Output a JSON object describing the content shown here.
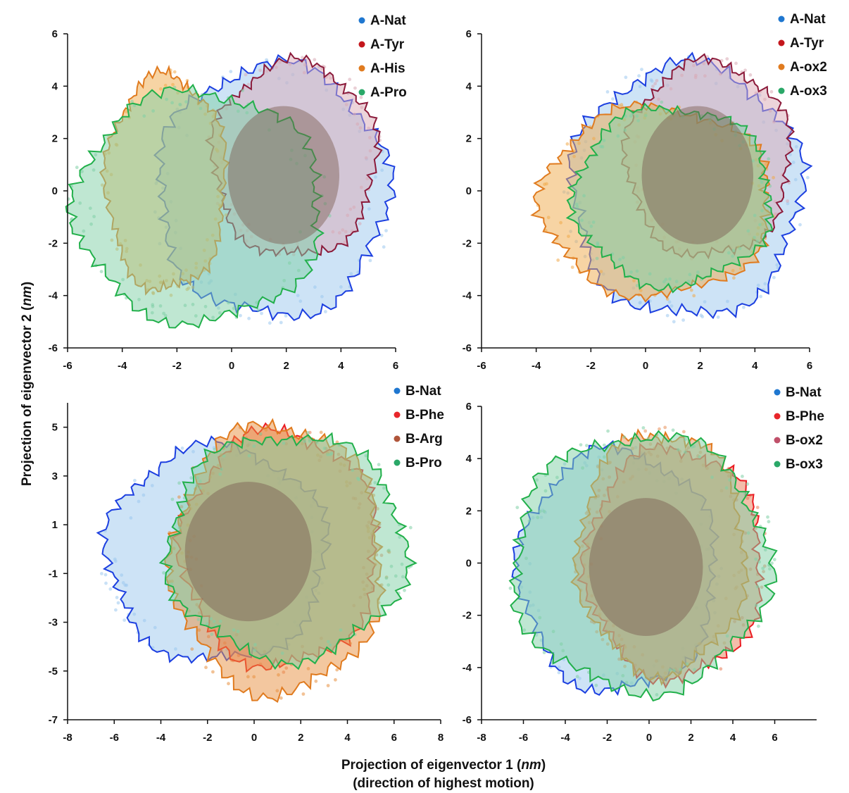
{
  "figure": {
    "xlabel_prefix": "Projection of eigenvector 1 (",
    "xlabel_unit": "nm",
    "xlabel_suffix": ")",
    "xlabel_line2": "(direction of highest motion)",
    "ylabel_prefix": "Projection of eigenvector 2 (",
    "ylabel_unit": "nm",
    "ylabel_suffix": ")"
  },
  "chart_data": [
    {
      "type": "scatter",
      "panel": "top-left",
      "xlim": [
        -6,
        6
      ],
      "ylim": [
        -6,
        6
      ],
      "xticks": [
        -6,
        -4,
        -2,
        0,
        2,
        4,
        6
      ],
      "yticks": [
        -6,
        -4,
        -2,
        0,
        2,
        4,
        6
      ],
      "legend": "top-right",
      "series": [
        {
          "name": "A-Nat",
          "color": "#1f77d0",
          "fill": "#9cc8ee",
          "outline": "#1c3fe0",
          "center": [
            1.5,
            0.0
          ],
          "radius": [
            4.2,
            4.8
          ]
        },
        {
          "name": "A-Tyr",
          "color": "#c4161c",
          "fill": "#d9a9b5",
          "outline": "#8b1a3a",
          "center": [
            2.3,
            1.2
          ],
          "radius": [
            3.0,
            3.7
          ]
        },
        {
          "name": "A-His",
          "color": "#e07b1f",
          "fill": "#f0a94a",
          "outline": "#e07b1f",
          "center": [
            -2.4,
            0.3
          ],
          "radius": [
            2.2,
            4.1
          ]
        },
        {
          "name": "A-Pro",
          "color": "#2aa868",
          "fill": "#7fd0a6",
          "outline": "#22b04b",
          "center": [
            -1.2,
            -0.6
          ],
          "radius": [
            4.5,
            4.4
          ]
        }
      ]
    },
    {
      "type": "scatter",
      "panel": "top-right",
      "xlim": [
        -6,
        6
      ],
      "ylim": [
        -6,
        6
      ],
      "xticks": [
        -6,
        -4,
        -2,
        0,
        2,
        4,
        6
      ],
      "yticks": [
        -6,
        -4,
        -2,
        0,
        2,
        4,
        6
      ],
      "legend": "top-right",
      "series": [
        {
          "name": "A-Nat",
          "color": "#1f77d0",
          "fill": "#9cc8ee",
          "outline": "#1c3fe0",
          "center": [
            1.5,
            0.0
          ],
          "radius": [
            4.2,
            4.8
          ]
        },
        {
          "name": "A-Tyr",
          "color": "#c4161c",
          "fill": "#d9a9b5",
          "outline": "#8b1a3a",
          "center": [
            2.3,
            1.2
          ],
          "radius": [
            3.0,
            3.7
          ]
        },
        {
          "name": "A-ox2",
          "color": "#e07b1f",
          "fill": "#f0a94a",
          "outline": "#e07b1f",
          "center": [
            0.4,
            -0.4
          ],
          "radius": [
            4.2,
            3.6
          ]
        },
        {
          "name": "A-ox3",
          "color": "#2aa868",
          "fill": "#7fd0a6",
          "outline": "#22b04b",
          "center": [
            1.0,
            -0.2
          ],
          "radius": [
            3.6,
            3.4
          ]
        }
      ]
    },
    {
      "type": "scatter",
      "panel": "bottom-left",
      "xlim": [
        -8,
        8
      ],
      "ylim": [
        -7,
        6
      ],
      "xticks": [
        -8,
        -6,
        -4,
        -2,
        0,
        2,
        4,
        6,
        8
      ],
      "yticks": [
        -7,
        -5,
        -3,
        -1,
        1,
        3,
        5
      ],
      "legend": "top-right",
      "series": [
        {
          "name": "B-Nat",
          "color": "#1f77d0",
          "fill": "#9cc8ee",
          "outline": "#1c3fe0",
          "center": [
            -1.6,
            -0.2
          ],
          "radius": [
            4.7,
            4.4
          ]
        },
        {
          "name": "B-Phe",
          "color": "#e8262a",
          "fill": "#e87b55",
          "outline": "#ea1c22",
          "center": [
            1.1,
            0.0
          ],
          "radius": [
            4.2,
            4.8
          ]
        },
        {
          "name": "B-Arg",
          "color": "#b0553a",
          "fill": "#e89040",
          "outline": "#e07b1f",
          "center": [
            1.0,
            -0.4
          ],
          "radius": [
            4.5,
            5.5
          ]
        },
        {
          "name": "B-Pro",
          "color": "#2aa868",
          "fill": "#7fd0a6",
          "outline": "#22b04b",
          "center": [
            1.4,
            0.1
          ],
          "radius": [
            5.1,
            4.6
          ]
        }
      ]
    },
    {
      "type": "scatter",
      "panel": "bottom-right",
      "xlim": [
        -8,
        8
      ],
      "ylim": [
        -6,
        6
      ],
      "xticks": [
        -8,
        -6,
        -4,
        -2,
        0,
        2,
        4,
        6
      ],
      "yticks": [
        -6,
        -4,
        -2,
        0,
        2,
        4,
        6
      ],
      "legend": "top-right",
      "series": [
        {
          "name": "B-Nat",
          "color": "#1f77d0",
          "fill": "#9cc8ee",
          "outline": "#1c3fe0",
          "center": [
            -1.5,
            -0.3
          ],
          "radius": [
            4.7,
            4.6
          ]
        },
        {
          "name": "B-Phe",
          "color": "#e8262a",
          "fill": "#e87b55",
          "outline": "#ea1c22",
          "center": [
            1.2,
            0.0
          ],
          "radius": [
            4.2,
            4.4
          ]
        },
        {
          "name": "B-ox2",
          "color": "#c0506a",
          "fill": "#e8905a",
          "outline": "#e07b1f",
          "center": [
            0.6,
            0.4
          ],
          "radius": [
            4.0,
            4.6
          ]
        },
        {
          "name": "B-ox3",
          "color": "#2aa868",
          "fill": "#7fd0a6",
          "outline": "#22b04b",
          "center": [
            -0.4,
            0.0
          ],
          "radius": [
            6.1,
            4.9
          ]
        }
      ]
    }
  ]
}
